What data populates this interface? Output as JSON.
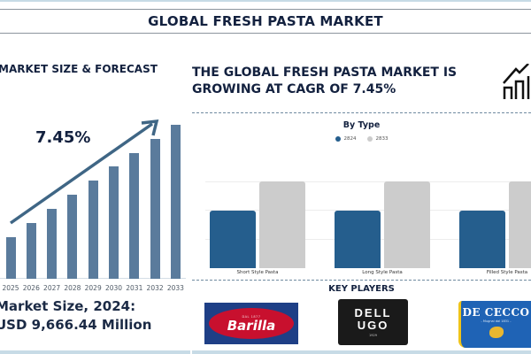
{
  "header": {
    "title": "GLOBAL FRESH PASTA MARKET"
  },
  "left_panel": {
    "heading": "MARKET SIZE & FORECAST",
    "cagr_label": "7.45%",
    "market_size_line1": "Market Size, 2024:",
    "market_size_line2": "USD 9,666.44 Million"
  },
  "right_panel": {
    "headline_line1": "THE GLOBAL FRESH PASTA MARKET IS",
    "headline_line2": "GROWING AT CAGR OF 7.45%",
    "icon": "growth-house-icon",
    "by_type_title": "By Type",
    "legend": [
      {
        "label": "2824",
        "color": "#255e8d"
      },
      {
        "label": "2833",
        "color": "#cccccc"
      }
    ],
    "key_players_title": "KEY PLAYERS",
    "key_players": [
      {
        "name": "Barilla",
        "tagline": "DAL 1877"
      },
      {
        "name_line1": "DELL",
        "name_line2": "UGO",
        "year": "1929"
      },
      {
        "name": "DE CECCO",
        "tagline": "- Mugnai dal 1831 -"
      }
    ]
  },
  "colors": {
    "title_text": "#13213f",
    "forecast_bar": "#5a7b9c",
    "series_2024": "#255e8d",
    "series_2033": "#cccccc",
    "accent_strip": "#c7dbe6"
  },
  "chart_data": [
    {
      "type": "bar",
      "title": "MARKET SIZE & FORECAST",
      "categories": [
        "2025",
        "2026",
        "2027",
        "2028",
        "2029",
        "2030",
        "2031",
        "2032",
        "2033"
      ],
      "values": [
        47,
        63,
        79,
        95,
        111,
        127,
        142,
        158,
        174
      ],
      "annotation": "7.45%",
      "trend_arrow": true,
      "xlabel": "",
      "ylabel": "",
      "grid": false
    },
    {
      "type": "bar",
      "title": "By Type",
      "categories": [
        "Short Style Pasta",
        "Long Style Pasta",
        "Filled Style Pasta"
      ],
      "series": [
        {
          "name": "2824",
          "values": [
            66,
            66,
            66
          ]
        },
        {
          "name": "2833",
          "values": [
            100,
            100,
            100
          ]
        }
      ],
      "legend_position": "top",
      "grid": true,
      "xlabel": "",
      "ylabel": ""
    }
  ]
}
